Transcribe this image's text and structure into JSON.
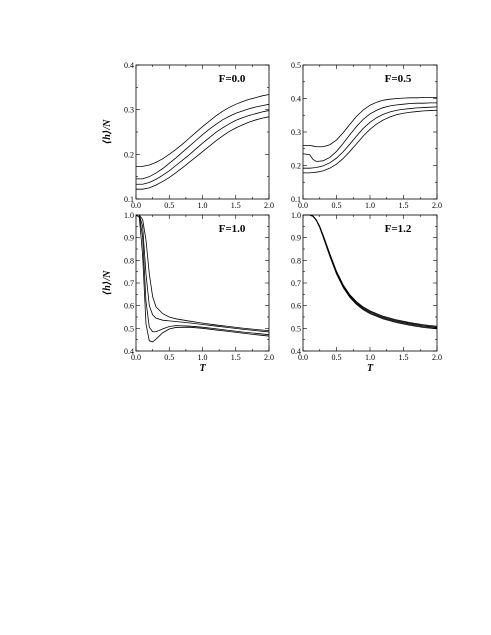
{
  "chart_data": [
    {
      "type": "line",
      "title": "F=0.0",
      "xlabel": "",
      "ylabel": "⟨h⟩/N",
      "xlim": [
        0.0,
        2.0
      ],
      "ylim": [
        0.1,
        0.4
      ],
      "xticks": [
        "0.0",
        "0.5",
        "1.0",
        "1.5",
        "2.0"
      ],
      "yticks": [
        "0.1",
        "0.2",
        "0.3",
        "0.4"
      ],
      "x": [
        0.0,
        0.1,
        0.2,
        0.3,
        0.4,
        0.5,
        0.6,
        0.7,
        0.8,
        0.9,
        1.0,
        1.1,
        1.2,
        1.3,
        1.4,
        1.5,
        1.6,
        1.7,
        1.8,
        1.9,
        2.0
      ],
      "series": [
        {
          "values": [
            0.173,
            0.173,
            0.176,
            0.182,
            0.19,
            0.2,
            0.211,
            0.223,
            0.236,
            0.249,
            0.262,
            0.274,
            0.286,
            0.296,
            0.305,
            0.312,
            0.318,
            0.323,
            0.327,
            0.331,
            0.334
          ]
        },
        {
          "values": [
            0.145,
            0.145,
            0.15,
            0.158,
            0.168,
            0.18,
            0.192,
            0.205,
            0.218,
            0.231,
            0.244,
            0.256,
            0.267,
            0.277,
            0.285,
            0.292,
            0.297,
            0.302,
            0.306,
            0.309,
            0.312
          ]
        },
        {
          "values": [
            0.133,
            0.133,
            0.137,
            0.144,
            0.153,
            0.163,
            0.175,
            0.187,
            0.199,
            0.212,
            0.225,
            0.237,
            0.249,
            0.259,
            0.268,
            0.276,
            0.282,
            0.287,
            0.291,
            0.295,
            0.298
          ]
        },
        {
          "values": [
            0.122,
            0.122,
            0.125,
            0.131,
            0.139,
            0.148,
            0.159,
            0.17,
            0.182,
            0.194,
            0.206,
            0.218,
            0.23,
            0.241,
            0.251,
            0.259,
            0.266,
            0.272,
            0.277,
            0.281,
            0.284
          ]
        }
      ]
    },
    {
      "type": "line",
      "title": "F=0.5",
      "xlabel": "",
      "ylabel": "",
      "xlim": [
        0.0,
        2.0
      ],
      "ylim": [
        0.1,
        0.5
      ],
      "xticks": [
        "0.0",
        "0.5",
        "1.0",
        "1.5",
        "2.0"
      ],
      "yticks": [
        "0.1",
        "0.2",
        "0.3",
        "0.4",
        "0.5"
      ],
      "x": [
        0.0,
        0.1,
        0.15,
        0.2,
        0.3,
        0.4,
        0.5,
        0.6,
        0.7,
        0.8,
        0.9,
        1.0,
        1.1,
        1.2,
        1.3,
        1.4,
        1.5,
        1.6,
        1.7,
        1.8,
        1.9,
        2.0
      ],
      "series": [
        {
          "values": [
            0.26,
            0.26,
            0.258,
            0.256,
            0.256,
            0.262,
            0.276,
            0.298,
            0.323,
            0.347,
            0.366,
            0.38,
            0.389,
            0.395,
            0.398,
            0.4,
            0.401,
            0.402,
            0.402,
            0.403,
            0.403,
            0.403
          ]
        },
        {
          "values": [
            0.235,
            0.232,
            0.218,
            0.212,
            0.214,
            0.224,
            0.242,
            0.266,
            0.292,
            0.317,
            0.338,
            0.354,
            0.365,
            0.373,
            0.378,
            0.381,
            0.383,
            0.385,
            0.386,
            0.386,
            0.387,
            0.387
          ]
        },
        {
          "values": [
            0.192,
            0.192,
            0.193,
            0.194,
            0.199,
            0.208,
            0.222,
            0.241,
            0.264,
            0.288,
            0.311,
            0.329,
            0.343,
            0.353,
            0.36,
            0.365,
            0.368,
            0.37,
            0.372,
            0.373,
            0.374,
            0.375
          ]
        },
        {
          "values": [
            0.178,
            0.178,
            0.179,
            0.18,
            0.184,
            0.192,
            0.204,
            0.221,
            0.242,
            0.265,
            0.288,
            0.308,
            0.324,
            0.336,
            0.345,
            0.352,
            0.356,
            0.359,
            0.361,
            0.363,
            0.364,
            0.365
          ]
        }
      ]
    },
    {
      "type": "line",
      "title": "F=1.0",
      "xlabel": "T",
      "ylabel": "⟨h⟩/N",
      "xlim": [
        0.0,
        2.0
      ],
      "ylim": [
        0.4,
        1.0
      ],
      "xticks": [
        "0.0",
        "0.5",
        "1.0",
        "1.5",
        "2.0"
      ],
      "yticks": [
        "0.4",
        "0.5",
        "0.6",
        "0.7",
        "0.8",
        "0.9",
        "1.0"
      ],
      "x": [
        0.0,
        0.05,
        0.1,
        0.15,
        0.2,
        0.25,
        0.3,
        0.4,
        0.5,
        0.6,
        0.8,
        1.0,
        1.2,
        1.4,
        1.6,
        1.8,
        2.0
      ],
      "series": [
        {
          "values": [
            1.0,
            1.0,
            0.98,
            0.89,
            0.74,
            0.64,
            0.595,
            0.565,
            0.55,
            0.542,
            0.532,
            0.523,
            0.515,
            0.508,
            0.501,
            0.495,
            0.49
          ]
        },
        {
          "values": [
            1.0,
            1.0,
            0.95,
            0.74,
            0.6,
            0.56,
            0.545,
            0.536,
            0.533,
            0.53,
            0.524,
            0.517,
            0.51,
            0.503,
            0.496,
            0.49,
            0.484
          ]
        },
        {
          "values": [
            1.0,
            1.0,
            0.9,
            0.62,
            0.505,
            0.485,
            0.485,
            0.497,
            0.508,
            0.512,
            0.51,
            0.505,
            0.498,
            0.491,
            0.484,
            0.478,
            0.472
          ]
        },
        {
          "values": [
            1.0,
            0.99,
            0.82,
            0.52,
            0.445,
            0.44,
            0.452,
            0.48,
            0.497,
            0.504,
            0.505,
            0.5,
            0.493,
            0.486,
            0.479,
            0.472,
            0.466
          ]
        }
      ]
    },
    {
      "type": "line",
      "title": "F=1.2",
      "xlabel": "T",
      "ylabel": "",
      "xlim": [
        0.0,
        2.0
      ],
      "ylim": [
        0.4,
        1.0
      ],
      "xticks": [
        "0.0",
        "0.5",
        "1.0",
        "1.5",
        "2.0"
      ],
      "yticks": [
        "0.4",
        "0.5",
        "0.6",
        "0.7",
        "0.8",
        "0.9",
        "1.0"
      ],
      "x": [
        0.0,
        0.1,
        0.15,
        0.2,
        0.25,
        0.3,
        0.4,
        0.5,
        0.6,
        0.7,
        0.8,
        0.9,
        1.0,
        1.2,
        1.4,
        1.6,
        1.8,
        2.0
      ],
      "series": [
        {
          "values": [
            1.0,
            1.0,
            0.995,
            0.978,
            0.95,
            0.912,
            0.83,
            0.752,
            0.692,
            0.648,
            0.617,
            0.594,
            0.577,
            0.553,
            0.537,
            0.525,
            0.516,
            0.509
          ]
        },
        {
          "values": [
            1.0,
            1.0,
            0.995,
            0.977,
            0.948,
            0.909,
            0.826,
            0.748,
            0.688,
            0.644,
            0.613,
            0.59,
            0.573,
            0.549,
            0.533,
            0.521,
            0.512,
            0.505
          ]
        },
        {
          "values": [
            1.0,
            1.0,
            0.994,
            0.976,
            0.946,
            0.906,
            0.822,
            0.744,
            0.684,
            0.64,
            0.609,
            0.586,
            0.569,
            0.545,
            0.529,
            0.517,
            0.508,
            0.502
          ]
        },
        {
          "values": [
            1.0,
            1.0,
            0.994,
            0.975,
            0.944,
            0.903,
            0.818,
            0.74,
            0.68,
            0.636,
            0.605,
            0.582,
            0.565,
            0.541,
            0.525,
            0.513,
            0.504,
            0.498
          ]
        }
      ]
    }
  ]
}
